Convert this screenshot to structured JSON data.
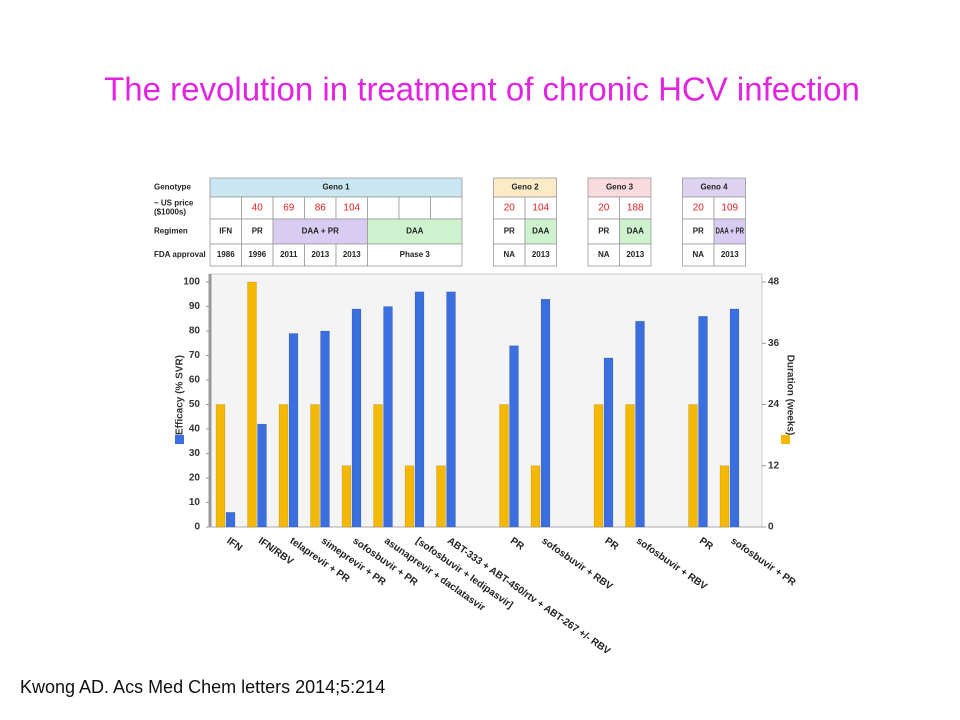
{
  "title": "The revolution in treatment of chronic HCV infection",
  "citation": "Kwong AD. Acs Med Chem letters 2014;5:214",
  "table": {
    "row_labels": [
      [
        "Genotype"
      ],
      [
        "~ US price",
        "($1000s)"
      ],
      [
        "Regimen"
      ],
      [
        "FDA approval"
      ]
    ],
    "groups": [
      {
        "name": "Geno 1",
        "color": "#c9e6f2",
        "prices": [
          null,
          40,
          69,
          86,
          104,
          null,
          null,
          null
        ],
        "regimen": [
          "IFN",
          "PR",
          "DAA + PR",
          null,
          null,
          "DAA",
          null,
          null
        ],
        "regimen_colors": [
          null,
          null,
          "#d8ccf2",
          null,
          null,
          "#cdf2cd",
          null,
          null
        ],
        "approval": [
          "1986",
          "1996",
          "2011",
          "2013",
          "2013",
          "Phase 3",
          null,
          null
        ]
      },
      {
        "name": "Geno 2",
        "color": "#fdebc8",
        "prices": [
          20,
          104
        ],
        "regimen": [
          "PR",
          "DAA"
        ],
        "regimen_colors": [
          null,
          "#cdf2cd"
        ],
        "approval": [
          "NA",
          "2013"
        ]
      },
      {
        "name": "Geno 3",
        "color": "#f9dade",
        "prices": [
          20,
          188
        ],
        "regimen": [
          "PR",
          "DAA"
        ],
        "regimen_colors": [
          null,
          "#cdf2cd"
        ],
        "approval": [
          "NA",
          "2013"
        ]
      },
      {
        "name": "Geno 4",
        "color": "#ddd3f0",
        "prices": [
          20,
          109
        ],
        "regimen": [
          "PR",
          "DAA + PR"
        ],
        "regimen_colors": [
          null,
          "#d8ccf2"
        ],
        "approval": [
          "NA",
          "2013"
        ]
      }
    ]
  },
  "chart_data": {
    "type": "bar",
    "categories": [
      "IFN",
      "IFN/RBV",
      "telaprevir + PR",
      "simeprevir + PR",
      "sofosbuvir + PR",
      "asunaprevir + daclatasvir",
      "[sofosbuvir + ledipasvir]",
      "ABT-333 + ABT-450/rtv + ABT-267 +/- RBV",
      "PR",
      "sofosbuvir + RBV",
      "PR",
      "sofosbuvir + RBV",
      "PR",
      "sofosbuvir + PR"
    ],
    "series": [
      {
        "name": "Duration (weeks)",
        "color": "#f5b800",
        "axis": "y2",
        "values": [
          24,
          48,
          24,
          24,
          12,
          24,
          12,
          12,
          24,
          12,
          24,
          24,
          24,
          12
        ]
      },
      {
        "name": "Efficacy (% SVR)",
        "color": "#3b6fe0",
        "values": [
          6,
          42,
          79,
          80,
          89,
          90,
          96,
          96,
          74,
          93,
          69,
          84,
          86,
          89
        ]
      }
    ],
    "ylim": [
      0,
      100
    ],
    "yticks": [
      0,
      10,
      20,
      30,
      40,
      50,
      60,
      70,
      80,
      90,
      100
    ],
    "y2lim": [
      0,
      48
    ],
    "y2ticks": [
      0,
      12,
      24,
      36,
      48
    ]
  }
}
